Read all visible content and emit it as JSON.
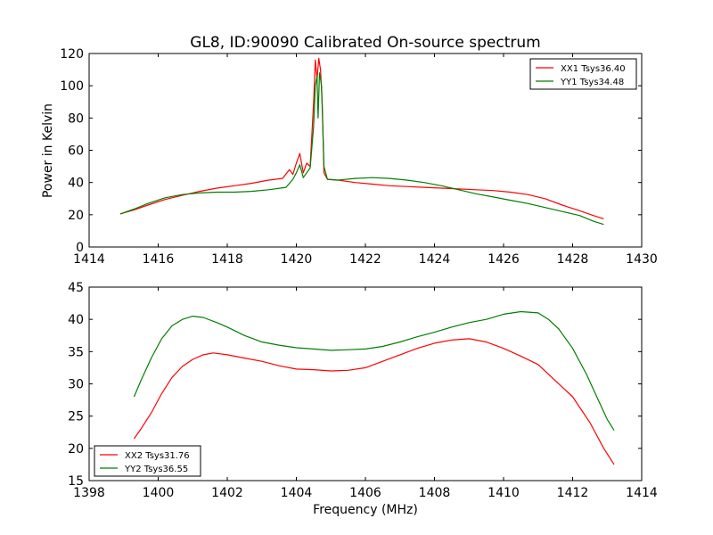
{
  "figure": {
    "title": "GL8, ID:90090 Calibrated On-source spectrum",
    "xlabel": "Frequency (MHz)",
    "ylabel": "Power in Kelvin"
  },
  "colors": {
    "red": "#ff0000",
    "green": "#007f00"
  },
  "chart_data": [
    {
      "type": "line",
      "xlim": [
        1414,
        1430
      ],
      "ylim": [
        0,
        120
      ],
      "xticks": [
        "1414",
        "1416",
        "1418",
        "1420",
        "1422",
        "1424",
        "1426",
        "1428",
        "1430"
      ],
      "yticks": [
        "0",
        "20",
        "40",
        "60",
        "80",
        "100",
        "120"
      ],
      "legend_position": "top-right",
      "series": [
        {
          "name": "XX1 Tsys36.40",
          "color": "red",
          "points": [
            [
              1414.9,
              20.5
            ],
            [
              1415.3,
              23
            ],
            [
              1415.7,
              26
            ],
            [
              1416.2,
              29.5
            ],
            [
              1416.7,
              32
            ],
            [
              1417.2,
              34.5
            ],
            [
              1417.7,
              36.5
            ],
            [
              1418.2,
              38
            ],
            [
              1418.7,
              39.5
            ],
            [
              1419.2,
              41.5
            ],
            [
              1419.6,
              42.5
            ],
            [
              1419.8,
              48
            ],
            [
              1419.9,
              45
            ],
            [
              1420.0,
              52
            ],
            [
              1420.1,
              58
            ],
            [
              1420.2,
              46
            ],
            [
              1420.3,
              52
            ],
            [
              1420.4,
              50
            ],
            [
              1420.5,
              90
            ],
            [
              1420.55,
              116
            ],
            [
              1420.6,
              104
            ],
            [
              1420.65,
              117
            ],
            [
              1420.7,
              110
            ],
            [
              1420.75,
              88
            ],
            [
              1420.8,
              46
            ],
            [
              1420.9,
              42
            ],
            [
              1421.2,
              41.5
            ],
            [
              1421.7,
              40
            ],
            [
              1422.2,
              39
            ],
            [
              1422.7,
              38
            ],
            [
              1423.2,
              37.5
            ],
            [
              1423.7,
              37
            ],
            [
              1424.2,
              36.5
            ],
            [
              1424.7,
              36
            ],
            [
              1425.2,
              35.5
            ],
            [
              1425.7,
              35
            ],
            [
              1426.2,
              34
            ],
            [
              1426.7,
              32.5
            ],
            [
              1427.2,
              30
            ],
            [
              1427.7,
              26
            ],
            [
              1428.2,
              22.5
            ],
            [
              1428.6,
              19.5
            ],
            [
              1428.9,
              17.5
            ]
          ]
        },
        {
          "name": "YY1 Tsys34.48",
          "color": "green",
          "points": [
            [
              1414.9,
              20.5
            ],
            [
              1415.3,
              23.5
            ],
            [
              1415.7,
              27
            ],
            [
              1416.2,
              30.5
            ],
            [
              1416.7,
              32.5
            ],
            [
              1417.2,
              33.5
            ],
            [
              1417.7,
              34
            ],
            [
              1418.2,
              34
            ],
            [
              1418.7,
              34.5
            ],
            [
              1419.2,
              35.5
            ],
            [
              1419.7,
              37
            ],
            [
              1419.9,
              42
            ],
            [
              1420.0,
              46
            ],
            [
              1420.1,
              51
            ],
            [
              1420.2,
              43
            ],
            [
              1420.3,
              46
            ],
            [
              1420.4,
              49
            ],
            [
              1420.5,
              75
            ],
            [
              1420.55,
              100
            ],
            [
              1420.6,
              106
            ],
            [
              1420.63,
              80
            ],
            [
              1420.67,
              108
            ],
            [
              1420.73,
              100
            ],
            [
              1420.8,
              50
            ],
            [
              1420.9,
              42
            ],
            [
              1421.2,
              41.5
            ],
            [
              1421.7,
              42.5
            ],
            [
              1422.2,
              43
            ],
            [
              1422.7,
              42.5
            ],
            [
              1423.2,
              41.5
            ],
            [
              1423.7,
              40
            ],
            [
              1424.2,
              38
            ],
            [
              1424.7,
              35.5
            ],
            [
              1425.2,
              33
            ],
            [
              1425.7,
              31
            ],
            [
              1426.2,
              29
            ],
            [
              1426.7,
              27
            ],
            [
              1427.2,
              24.5
            ],
            [
              1427.7,
              22
            ],
            [
              1428.2,
              19.5
            ],
            [
              1428.6,
              16
            ],
            [
              1428.9,
              14
            ]
          ]
        }
      ]
    },
    {
      "type": "line",
      "xlim": [
        1398,
        1414
      ],
      "ylim": [
        15,
        45
      ],
      "xticks": [
        "1398",
        "1400",
        "1402",
        "1404",
        "1406",
        "1408",
        "1410",
        "1412",
        "1414"
      ],
      "yticks": [
        "15",
        "20",
        "25",
        "30",
        "35",
        "40",
        "45"
      ],
      "legend_position": "bottom-left",
      "series": [
        {
          "name": "XX2 Tsys31.76",
          "color": "red",
          "points": [
            [
              1399.3,
              21.5
            ],
            [
              1399.5,
              23
            ],
            [
              1399.8,
              25.5
            ],
            [
              1400.1,
              28.5
            ],
            [
              1400.4,
              31
            ],
            [
              1400.7,
              32.7
            ],
            [
              1401.0,
              33.8
            ],
            [
              1401.3,
              34.5
            ],
            [
              1401.6,
              34.8
            ],
            [
              1402.0,
              34.5
            ],
            [
              1402.5,
              34
            ],
            [
              1403.0,
              33.5
            ],
            [
              1403.5,
              32.8
            ],
            [
              1404.0,
              32.3
            ],
            [
              1404.5,
              32.2
            ],
            [
              1405.0,
              32
            ],
            [
              1405.5,
              32.1
            ],
            [
              1406.0,
              32.5
            ],
            [
              1406.5,
              33.5
            ],
            [
              1407.0,
              34.5
            ],
            [
              1407.5,
              35.5
            ],
            [
              1408.0,
              36.3
            ],
            [
              1408.5,
              36.8
            ],
            [
              1409.0,
              37
            ],
            [
              1409.5,
              36.5
            ],
            [
              1410.0,
              35.5
            ],
            [
              1410.5,
              34.3
            ],
            [
              1411.0,
              33
            ],
            [
              1411.5,
              30.5
            ],
            [
              1412.0,
              28
            ],
            [
              1412.5,
              24
            ],
            [
              1412.9,
              20
            ],
            [
              1413.2,
              17.5
            ]
          ]
        },
        {
          "name": "YY2 Tsys36.55",
          "color": "green",
          "points": [
            [
              1399.3,
              28
            ],
            [
              1399.5,
              30.5
            ],
            [
              1399.8,
              34
            ],
            [
              1400.1,
              37
            ],
            [
              1400.4,
              39
            ],
            [
              1400.7,
              40
            ],
            [
              1401.0,
              40.5
            ],
            [
              1401.3,
              40.3
            ],
            [
              1401.7,
              39.5
            ],
            [
              1402.0,
              38.8
            ],
            [
              1402.5,
              37.5
            ],
            [
              1403.0,
              36.5
            ],
            [
              1403.5,
              36
            ],
            [
              1404.0,
              35.6
            ],
            [
              1404.5,
              35.4
            ],
            [
              1405.0,
              35.2
            ],
            [
              1405.5,
              35.3
            ],
            [
              1406.0,
              35.4
            ],
            [
              1406.5,
              35.8
            ],
            [
              1407.0,
              36.5
            ],
            [
              1407.5,
              37.3
            ],
            [
              1408.0,
              38
            ],
            [
              1408.5,
              38.8
            ],
            [
              1409.0,
              39.5
            ],
            [
              1409.5,
              40
            ],
            [
              1410.0,
              40.8
            ],
            [
              1410.5,
              41.2
            ],
            [
              1411.0,
              41
            ],
            [
              1411.3,
              40
            ],
            [
              1411.6,
              38.5
            ],
            [
              1412.0,
              35.5
            ],
            [
              1412.4,
              31.5
            ],
            [
              1412.7,
              28
            ],
            [
              1413.0,
              24.5
            ],
            [
              1413.2,
              22.8
            ]
          ]
        }
      ]
    }
  ]
}
